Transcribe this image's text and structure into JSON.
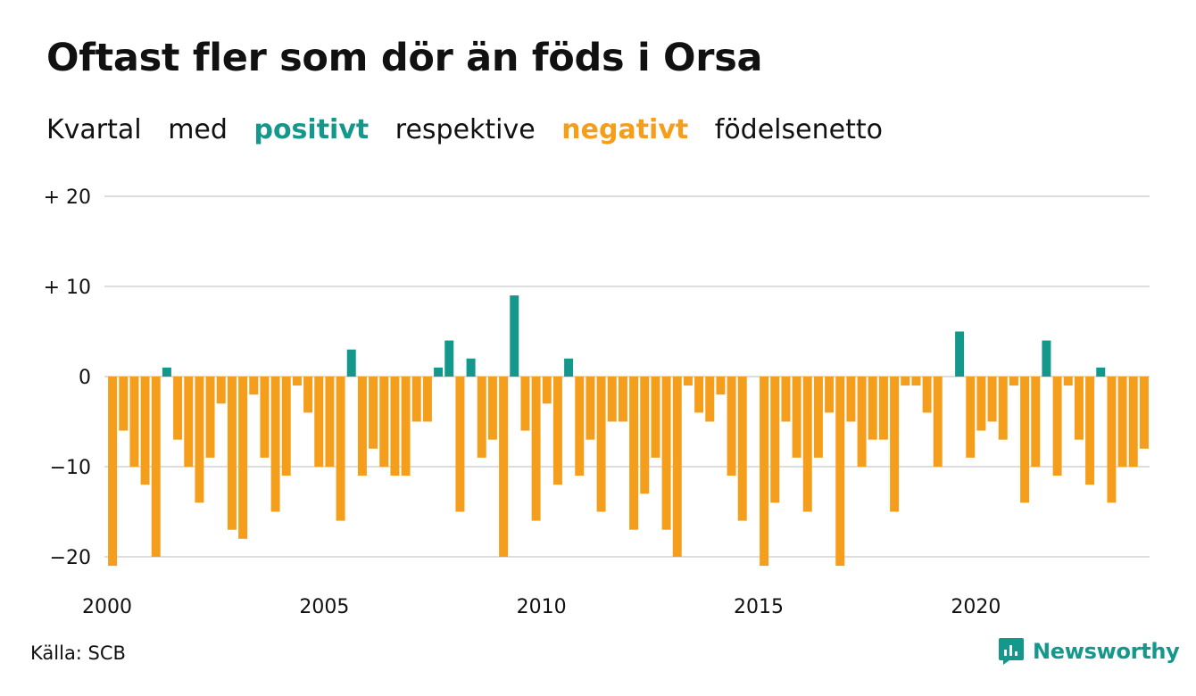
{
  "title": "Oftast fler som dör än föds i Orsa",
  "subtitle": {
    "w1": "Kvartal",
    "w2": "med",
    "positive": "positivt",
    "w3": "respektive",
    "negative": "negativt",
    "w4": "födelsenetto"
  },
  "source": "Källa: SCB",
  "brand": "Newsworthy",
  "colors": {
    "positive": "#14988b",
    "negative": "#f59e1c",
    "grid": "#dddddd"
  },
  "chart_data": {
    "type": "bar",
    "title": "Oftast fler som dör än föds i Orsa",
    "xlabel": "",
    "ylabel": "",
    "ylim": [
      -21.5,
      20
    ],
    "grid": true,
    "ytick_values": [
      20,
      10,
      0,
      -10,
      -20
    ],
    "ytick_labels": [
      "+ 20",
      "+ 10",
      "0",
      "−10",
      "−20"
    ],
    "xtick_labels": [
      "2000",
      "2005",
      "2010",
      "2015",
      "2020"
    ],
    "x_start": "2000 Q1",
    "values": [
      -21,
      -6,
      -10,
      -12,
      -20,
      1,
      -7,
      -10,
      -14,
      -9,
      -3,
      -17,
      -18,
      -2,
      -9,
      -15,
      -11,
      -1,
      -4,
      -10,
      -10,
      -16,
      3,
      -11,
      -8,
      -10,
      -11,
      -11,
      -5,
      -5,
      1,
      4,
      -15,
      2,
      -9,
      -7,
      -20,
      9,
      -6,
      -16,
      -3,
      -12,
      2,
      -11,
      -7,
      -15,
      -5,
      -5,
      -17,
      -13,
      -9,
      -17,
      -20,
      -1,
      -4,
      -5,
      -2,
      -11,
      -16,
      0,
      -21,
      -14,
      -5,
      -9,
      -15,
      -9,
      -4,
      -21,
      -5,
      -10,
      -7,
      -7,
      -15,
      -1,
      -1,
      -4,
      -10,
      0,
      5,
      -9,
      -6,
      -5,
      -7,
      -1,
      -14,
      -10,
      4,
      -11,
      -1,
      -7,
      -12,
      1,
      -14,
      -10,
      -10,
      -8
    ]
  }
}
